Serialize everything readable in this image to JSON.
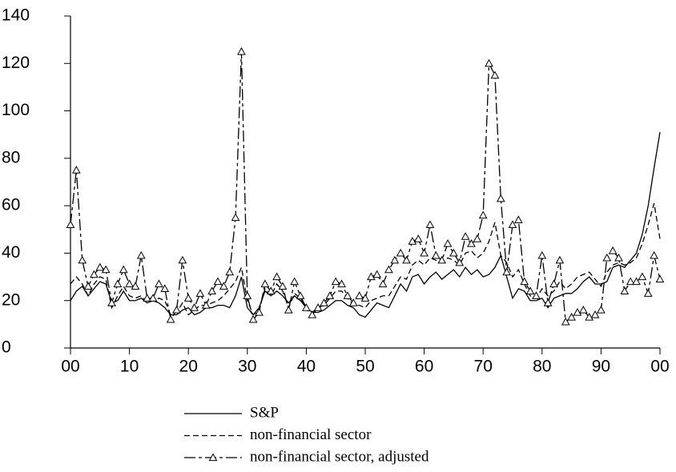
{
  "chart_data": {
    "type": "line",
    "x": [
      0,
      1,
      2,
      3,
      4,
      5,
      6,
      7,
      8,
      9,
      10,
      11,
      12,
      13,
      14,
      15,
      16,
      17,
      18,
      19,
      20,
      21,
      22,
      23,
      24,
      25,
      26,
      27,
      28,
      29,
      30,
      31,
      32,
      33,
      34,
      35,
      36,
      37,
      38,
      39,
      40,
      41,
      42,
      43,
      44,
      45,
      46,
      47,
      48,
      49,
      50,
      51,
      52,
      53,
      54,
      55,
      56,
      57,
      58,
      59,
      60,
      61,
      62,
      63,
      64,
      65,
      66,
      67,
      68,
      69,
      70,
      71,
      72,
      73,
      74,
      75,
      76,
      77,
      78,
      79,
      80,
      81,
      82,
      83,
      84,
      85,
      86,
      87,
      88,
      89,
      90,
      91,
      92,
      93,
      94,
      95,
      96,
      97,
      98,
      99,
      100
    ],
    "xlim": [
      0,
      100
    ],
    "xticks": [
      {
        "value": 0,
        "label": "00"
      },
      10,
      20,
      30,
      40,
      50,
      60,
      70,
      80,
      90,
      {
        "value": 100,
        "label": "00"
      }
    ],
    "ylim": [
      0,
      140
    ],
    "yticks": [
      0,
      20,
      40,
      60,
      80,
      100,
      120,
      140
    ],
    "legend": "bottom",
    "series": [
      {
        "name": "S&P",
        "color": "#000000",
        "line_style": "solid",
        "values": [
          20,
          24,
          26,
          22,
          25,
          28,
          27,
          19,
          20,
          24,
          20,
          20,
          21,
          19,
          20,
          19,
          17,
          14,
          14,
          16,
          17,
          14,
          15,
          17,
          17,
          18,
          18,
          17,
          22,
          30,
          17,
          14,
          17,
          24,
          22,
          24,
          22,
          19,
          22,
          20,
          17,
          15,
          15,
          16,
          18,
          20,
          20,
          18,
          17,
          14,
          13,
          16,
          19,
          18,
          17,
          22,
          27,
          24,
          30,
          31,
          27,
          30,
          32,
          29,
          31,
          33,
          30,
          34,
          31,
          33,
          30,
          31,
          34,
          39,
          30,
          21,
          25,
          24,
          20,
          20,
          21,
          17,
          21,
          22,
          23,
          23,
          25,
          28,
          30,
          27,
          27,
          28,
          34,
          35,
          34,
          37,
          40,
          48,
          60,
          76,
          91
        ]
      },
      {
        "name": "non-financial sector",
        "color": "#000000",
        "line_style": "dashed",
        "values": [
          27,
          30,
          27,
          22,
          27,
          30,
          29,
          17,
          22,
          26,
          22,
          21,
          22,
          19,
          20,
          21,
          20,
          14,
          15,
          19,
          14,
          16,
          18,
          18,
          19,
          20,
          22,
          25,
          28,
          34,
          20,
          14,
          16,
          25,
          22,
          27,
          24,
          17,
          23,
          21,
          16,
          15,
          17,
          18,
          21,
          24,
          24,
          21,
          18,
          18,
          17,
          20,
          21,
          22,
          22,
          26,
          30,
          29,
          35,
          37,
          35,
          38,
          37,
          36,
          38,
          37,
          35,
          40,
          41,
          38,
          40,
          45,
          53,
          39,
          36,
          30,
          33,
          27,
          22,
          21,
          25,
          22,
          24,
          28,
          25,
          27,
          30,
          31,
          32,
          29,
          26,
          32,
          35,
          36,
          35,
          36,
          38,
          44,
          52,
          61,
          46
        ]
      },
      {
        "name": "non-financial sector, adjusted",
        "color": "#000000",
        "line_style": "dashdot",
        "marker": "triangle",
        "values": [
          52,
          75,
          37,
          26,
          31,
          34,
          33,
          19,
          27,
          33,
          27,
          26,
          39,
          21,
          21,
          27,
          25,
          12,
          16,
          37,
          21,
          17,
          23,
          18,
          24,
          28,
          26,
          32,
          55,
          125,
          22,
          12,
          15,
          27,
          24,
          30,
          26,
          16,
          28,
          22,
          17,
          14,
          17,
          19,
          22,
          28,
          27,
          22,
          19,
          22,
          21,
          30,
          31,
          27,
          33,
          37,
          40,
          37,
          45,
          46,
          40,
          52,
          39,
          37,
          44,
          40,
          36,
          47,
          44,
          46,
          56,
          120,
          115,
          63,
          32,
          52,
          54,
          28,
          24,
          22,
          39,
          19,
          27,
          37,
          11,
          13,
          15,
          16,
          13,
          14,
          16,
          38,
          41,
          38,
          24,
          28,
          28,
          30,
          23,
          39,
          29
        ]
      }
    ]
  }
}
